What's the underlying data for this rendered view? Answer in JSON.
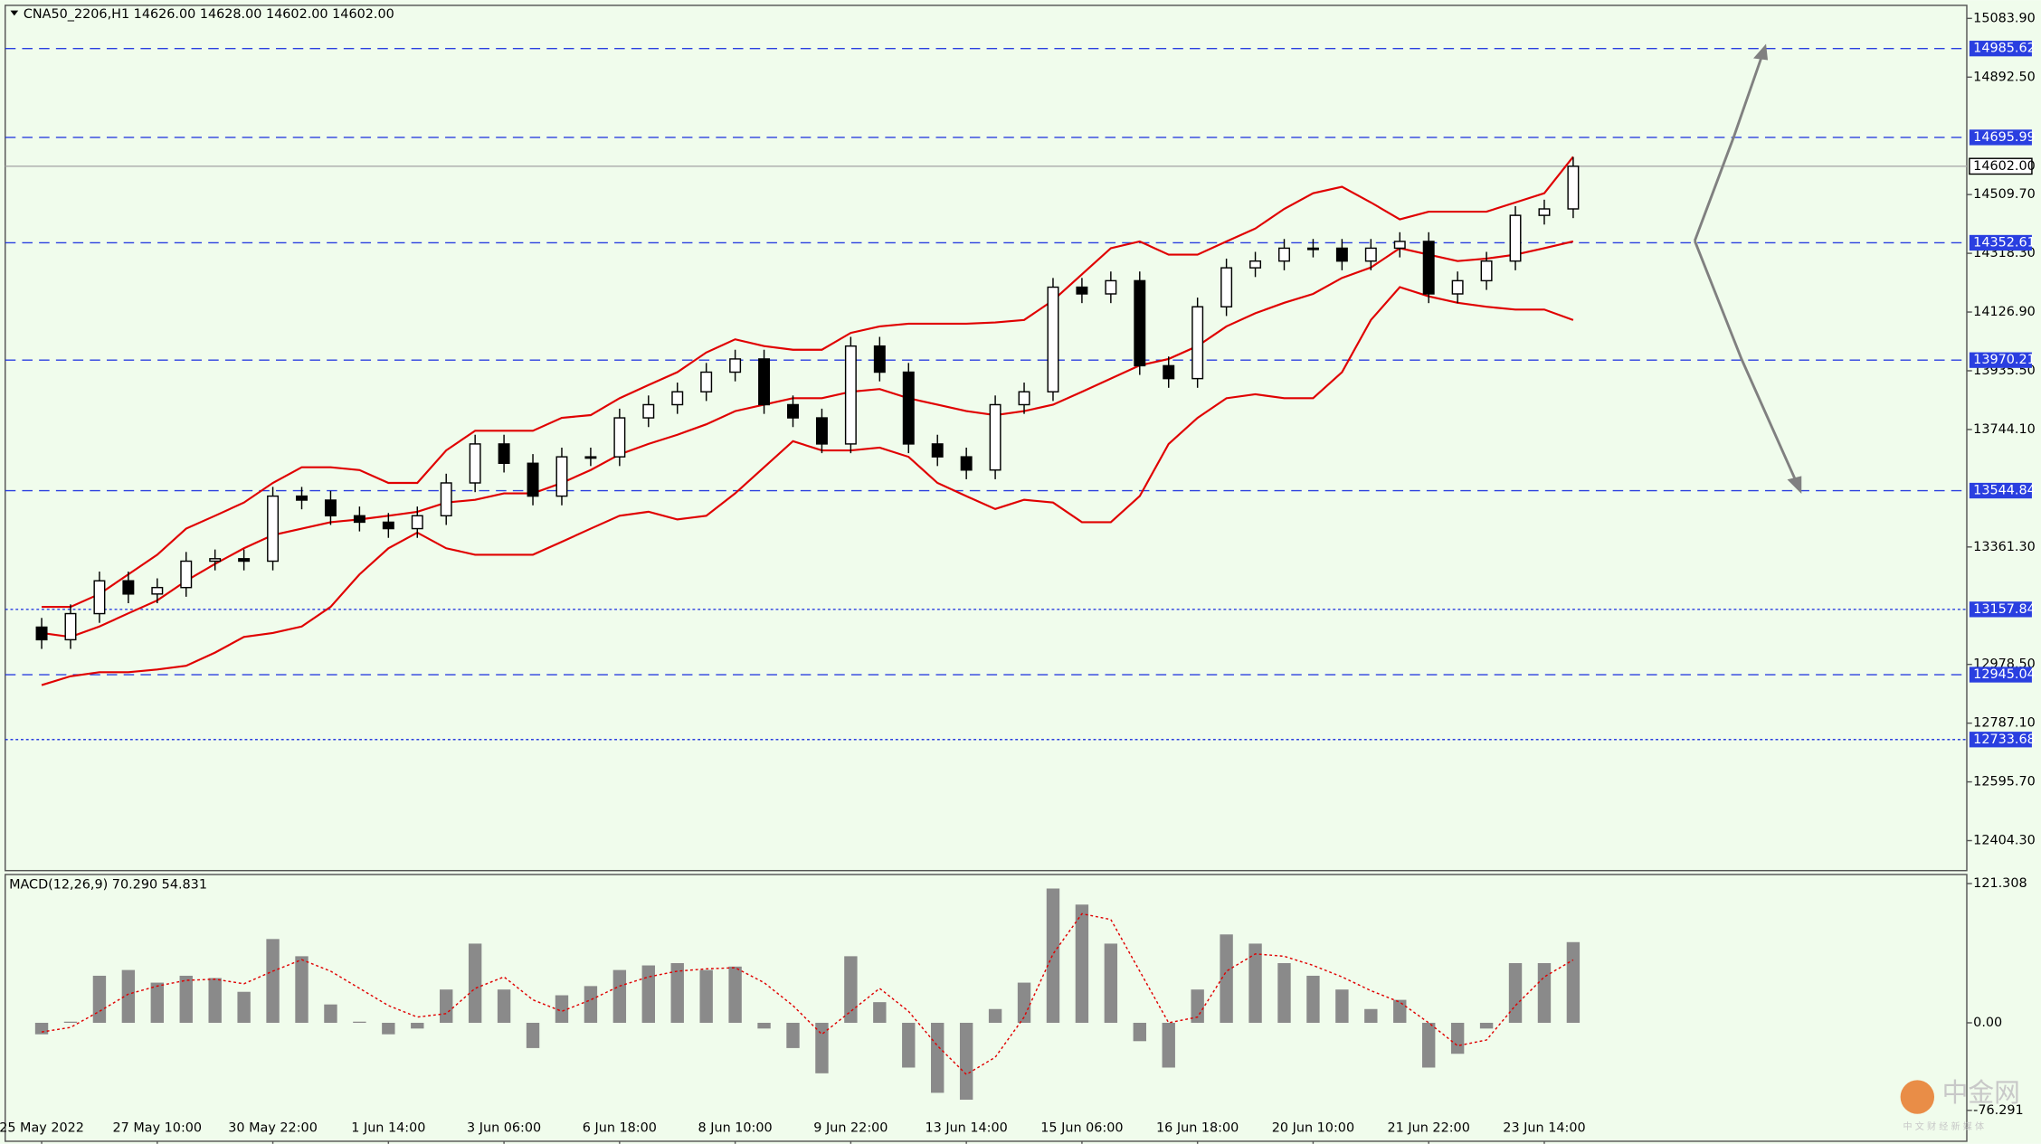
{
  "chart_data": {
    "type": "candlestick",
    "info": "CNA50_2206,H1  14626.00 14628.00 14602.00 14602.00",
    "categories": [
      "25 May 2022",
      null,
      null,
      null,
      "27 May 10:00",
      null,
      null,
      null,
      "30 May 22:00",
      null,
      null,
      null,
      "1 Jun 14:00",
      null,
      null,
      null,
      "3 Jun 06:00",
      null,
      null,
      null,
      "6 Jun 18:00",
      null,
      null,
      null,
      "8 Jun 10:00",
      null,
      null,
      null,
      "9 Jun 22:00",
      null,
      null,
      null,
      "13 Jun 14:00",
      null,
      null,
      null,
      "15 Jun 06:00",
      null,
      null,
      null,
      "16 Jun 18:00",
      null,
      null,
      null,
      "20 Jun 10:00",
      null,
      null,
      null,
      "21 Jun 22:00",
      null,
      null,
      null,
      "23 Jun 14:00",
      null
    ],
    "open": [
      13100,
      13059,
      13144,
      13251,
      13208,
      13229,
      13315,
      13323,
      13315,
      13527,
      13514,
      13463,
      13442,
      13421,
      13463,
      13570,
      13697,
      13634,
      13527,
      13655,
      13655,
      13782,
      13825,
      13867,
      13931,
      13974,
      13825,
      13782,
      13697,
      14016,
      13931,
      13697,
      13655,
      13612,
      13825,
      13867,
      14208,
      14186,
      14229,
      13952,
      13910,
      14144,
      14271,
      14293,
      14335,
      14335,
      14293,
      14335,
      14357,
      14186,
      14229,
      14293,
      14442,
      14463
    ],
    "high": [
      13130,
      13174,
      13281,
      13281,
      13259,
      13345,
      13353,
      13353,
      13557,
      13557,
      13544,
      13493,
      13472,
      13493,
      13600,
      13727,
      13727,
      13664,
      13685,
      13685,
      13812,
      13855,
      13897,
      13961,
      14004,
      14004,
      13855,
      13812,
      14046,
      14046,
      13961,
      13727,
      13685,
      13855,
      13897,
      14238,
      14238,
      14259,
      14259,
      13982,
      14174,
      14301,
      14323,
      14365,
      14365,
      14365,
      14365,
      14387,
      14387,
      14259,
      14323,
      14472,
      14493,
      14632
    ],
    "low": [
      13029,
      13029,
      13114,
      13178,
      13178,
      13199,
      13285,
      13285,
      13285,
      13484,
      13433,
      13412,
      13391,
      13391,
      13433,
      13540,
      13604,
      13497,
      13497,
      13625,
      13625,
      13752,
      13795,
      13837,
      13901,
      13795,
      13752,
      13667,
      13667,
      13901,
      13667,
      13625,
      13582,
      13582,
      13795,
      13837,
      14156,
      14156,
      13922,
      13880,
      13880,
      14114,
      14241,
      14263,
      14305,
      14263,
      14263,
      14305,
      14156,
      14156,
      14199,
      14263,
      14412,
      14433
    ],
    "close": [
      13059,
      13144,
      13251,
      13208,
      13229,
      13315,
      13323,
      13315,
      13527,
      13514,
      13463,
      13442,
      13421,
      13463,
      13570,
      13697,
      13634,
      13527,
      13655,
      13655,
      13782,
      13825,
      13867,
      13931,
      13974,
      13825,
      13782,
      13697,
      14016,
      13931,
      13697,
      13655,
      13612,
      13825,
      13867,
      14208,
      14186,
      14229,
      13952,
      13910,
      14144,
      14271,
      14293,
      14335,
      14335,
      14293,
      14335,
      14357,
      14186,
      14229,
      14293,
      14442,
      14463,
      14602
    ],
    "up_color": "#ffffff",
    "down_color": "#000000",
    "outline_color": "#000000",
    "bollinger": {
      "color": "#e00000",
      "upper": [
        13166,
        13166,
        13208,
        13272,
        13336,
        13421,
        13463,
        13506,
        13570,
        13621,
        13621,
        13612,
        13570,
        13570,
        13676,
        13740,
        13740,
        13740,
        13782,
        13791,
        13846,
        13889,
        13931,
        13995,
        14038,
        14016,
        14004,
        14004,
        14059,
        14080,
        14089,
        14089,
        14089,
        14093,
        14101,
        14165,
        14250,
        14335,
        14357,
        14314,
        14314,
        14357,
        14399,
        14463,
        14514,
        14535,
        14484,
        14429,
        14454,
        14454,
        14454,
        14484,
        14514,
        14633
      ],
      "middle": [
        13081,
        13068,
        13102,
        13145,
        13187,
        13251,
        13306,
        13357,
        13400,
        13421,
        13442,
        13451,
        13463,
        13476,
        13506,
        13515,
        13536,
        13536,
        13570,
        13612,
        13663,
        13697,
        13727,
        13761,
        13804,
        13825,
        13846,
        13846,
        13867,
        13876,
        13846,
        13825,
        13804,
        13791,
        13804,
        13825,
        13867,
        13910,
        13953,
        13974,
        14016,
        14080,
        14123,
        14157,
        14186,
        14238,
        14272,
        14335,
        14314,
        14293,
        14301,
        14314,
        14335,
        14357
      ],
      "lower": [
        12911,
        12940,
        12953,
        12953,
        12962,
        12974,
        13017,
        13068,
        13081,
        13102,
        13166,
        13272,
        13357,
        13408,
        13357,
        13336,
        13336,
        13336,
        13378,
        13421,
        13463,
        13476,
        13451,
        13463,
        13536,
        13621,
        13706,
        13676,
        13676,
        13685,
        13655,
        13570,
        13527,
        13485,
        13515,
        13506,
        13442,
        13442,
        13527,
        13697,
        13782,
        13846,
        13859,
        13846,
        13846,
        13931,
        14101,
        14208,
        14178,
        14157,
        14144,
        14135,
        14135,
        14101
      ]
    },
    "ylim": [
      12306.5,
      15126.4
    ],
    "yticks": [
      {
        "value": 15083.9,
        "label": "15083.90"
      },
      {
        "value": 14892.5,
        "label": "14892.50"
      },
      {
        "value": 14509.7,
        "label": "14509.70"
      },
      {
        "value": 14318.3,
        "label": "14318.30"
      },
      {
        "value": 14126.9,
        "label": "14126.90"
      },
      {
        "value": 13935.5,
        "label": "13935.50"
      },
      {
        "value": 13744.1,
        "label": "13744.10"
      },
      {
        "value": 13361.3,
        "label": "13361.30"
      },
      {
        "value": 12978.5,
        "label": "12978.50"
      },
      {
        "value": 12787.1,
        "label": "12787.10"
      },
      {
        "value": 12595.7,
        "label": "12595.70"
      },
      {
        "value": 12404.3,
        "label": "12404.30"
      }
    ],
    "level_color": "#2a3fe0",
    "levels": [
      {
        "value": 14985.62,
        "style": "dashed"
      },
      {
        "value": 14695.99,
        "style": "dashed"
      },
      {
        "value": 14352.61,
        "style": "dashed"
      },
      {
        "value": 13970.21,
        "style": "dashed"
      },
      {
        "value": 13544.84,
        "style": "dashed"
      },
      {
        "value": 13157.84,
        "style": "dotted"
      },
      {
        "value": 12945.04,
        "style": "dashed"
      },
      {
        "value": 12733.68,
        "style": "dotted"
      }
    ],
    "last_price": {
      "value": 14602,
      "label": "14602.00"
    },
    "macd": {
      "label": "MACD(12,26,9) 70.290 54.831",
      "bar_color": "#8a8a8a",
      "signal_color": "#e00000",
      "histogram": [
        -10,
        1,
        41,
        46,
        35,
        41,
        39,
        27,
        73,
        58,
        16,
        1,
        -10,
        -5,
        29,
        69,
        29,
        -22,
        24,
        32,
        46,
        50,
        52,
        46,
        49,
        -5,
        -22,
        -44,
        58,
        18,
        -39,
        -61,
        -67,
        12,
        35,
        117,
        103,
        69,
        -16,
        -39,
        29,
        77,
        69,
        52,
        41,
        29,
        12,
        20,
        -39,
        -27,
        -5,
        52,
        52,
        70.29
      ],
      "signal": [
        -8,
        -4,
        10,
        25,
        32,
        37,
        38,
        34,
        45,
        55,
        45,
        30,
        15,
        5,
        8,
        30,
        40,
        20,
        10,
        20,
        32,
        40,
        45,
        47,
        48,
        35,
        15,
        -10,
        10,
        30,
        10,
        -20,
        -45,
        -30,
        5,
        60,
        95,
        90,
        45,
        0,
        5,
        45,
        60,
        58,
        50,
        40,
        28,
        18,
        0,
        -20,
        -15,
        15,
        40,
        54.831
      ],
      "ylim": [
        -103.2,
        129.2
      ],
      "yticks": [
        {
          "value": 121.308,
          "label": "121.308"
        },
        {
          "value": 0,
          "label": "0.00"
        },
        {
          "value": -76.291,
          "label": "-76.291"
        }
      ]
    },
    "watermark": "中金网",
    "watermark_sub": "中 文 财 经 新 媒 体"
  }
}
